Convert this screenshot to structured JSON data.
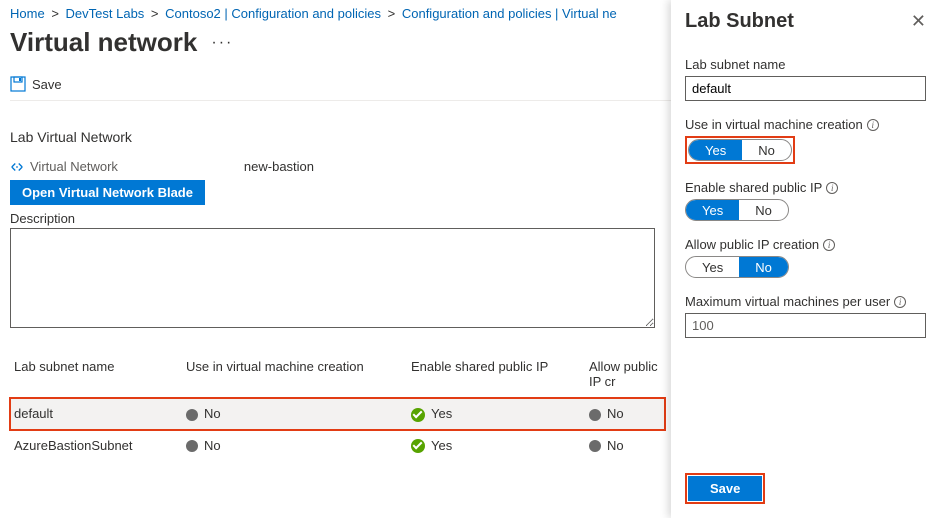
{
  "colors": {
    "link": "#0065b3",
    "primary": "#0078d4",
    "highlight_border": "#e23c14",
    "success": "#57a300",
    "dot_gray": "#6b6b6b",
    "text": "#323130",
    "muted": "#605e5c",
    "border": "#edebe9",
    "panel_shadow": "rgba(0,0,0,0.15)"
  },
  "breadcrumb": {
    "items": [
      "Home",
      "DevTest Labs",
      "Contoso2 | Configuration and policies",
      "Configuration and policies | Virtual ne"
    ],
    "separator": ">"
  },
  "page": {
    "title": "Virtual network",
    "more": "···"
  },
  "toolbar": {
    "save_label": "Save"
  },
  "lab_vnet": {
    "section_title": "Lab Virtual Network",
    "vnet_label": "Virtual Network",
    "vnet_value": "new-bastion",
    "open_blade_label": "Open Virtual Network Blade",
    "description_label": "Description",
    "description_value": ""
  },
  "subnet_table": {
    "headers": {
      "name": "Lab subnet name",
      "use_in_vm": "Use in virtual machine creation",
      "shared_ip": "Enable shared public IP",
      "allow_ip": "Allow public IP cr"
    },
    "rows": [
      {
        "name": "default",
        "use_in_vm": "No",
        "use_in_vm_ok": false,
        "shared_ip": "Yes",
        "shared_ip_ok": true,
        "allow_ip": "No",
        "allow_ip_ok": false,
        "highlighted": true
      },
      {
        "name": "AzureBastionSubnet",
        "use_in_vm": "No",
        "use_in_vm_ok": false,
        "shared_ip": "Yes",
        "shared_ip_ok": true,
        "allow_ip": "No",
        "allow_ip_ok": false,
        "highlighted": false
      }
    ]
  },
  "panel": {
    "title": "Lab Subnet",
    "fields": {
      "name_label": "Lab subnet name",
      "name_value": "default",
      "use_vm_label": "Use in virtual machine creation",
      "shared_ip_label": "Enable shared public IP",
      "allow_ip_label": "Allow public IP creation",
      "max_vm_label": "Maximum virtual machines per user",
      "max_vm_value": "100",
      "yes": "Yes",
      "no": "No"
    },
    "toggles": {
      "use_vm": "Yes",
      "shared_ip": "Yes",
      "allow_ip": "No"
    },
    "save_label": "Save"
  }
}
